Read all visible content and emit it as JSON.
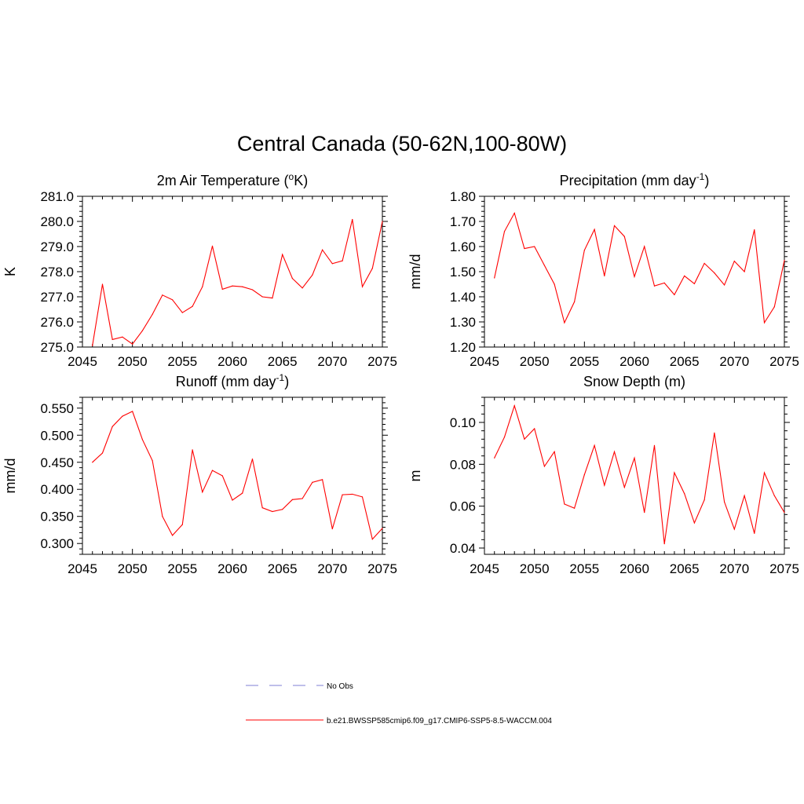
{
  "main_title": "Central Canada (50-62N,100-80W)",
  "colors": {
    "model": "#ff0000",
    "obs": "#9999dd",
    "axis": "#000000"
  },
  "chart_data": [
    {
      "type": "line",
      "id": "temp",
      "title": "2m Air Temperature (",
      "title_sup": "o",
      "title_tail": "K)",
      "ylabel": "K",
      "xlim": [
        2045,
        2075
      ],
      "ylim": [
        275.0,
        281.0
      ],
      "xticks": [
        "2045",
        "2050",
        "2055",
        "2060",
        "2065",
        "2070",
        "2075"
      ],
      "yticks": [
        "275.0",
        "276.0",
        "277.0",
        "278.0",
        "279.0",
        "280.0",
        "281.0"
      ],
      "x": [
        2046,
        2047,
        2048,
        2049,
        2050,
        2051,
        2052,
        2053,
        2054,
        2055,
        2056,
        2057,
        2058,
        2059,
        2060,
        2061,
        2062,
        2063,
        2064,
        2065,
        2066,
        2067,
        2068,
        2069,
        2070,
        2071,
        2072,
        2073,
        2074,
        2075
      ],
      "values": [
        275.05,
        277.5,
        275.3,
        275.4,
        275.12,
        275.65,
        276.3,
        277.07,
        276.88,
        276.37,
        276.62,
        277.4,
        279.02,
        277.3,
        277.43,
        277.4,
        277.28,
        277.0,
        276.95,
        278.68,
        277.73,
        277.35,
        277.87,
        278.87,
        278.32,
        278.43,
        280.08,
        277.4,
        278.13,
        280.0
      ]
    },
    {
      "type": "line",
      "id": "precip",
      "title": "Precipitation (mm day",
      "title_sup": "-1",
      "title_tail": ")",
      "ylabel": "mm/d",
      "xlim": [
        2045,
        2075
      ],
      "ylim": [
        1.2,
        1.8
      ],
      "xticks": [
        "2045",
        "2050",
        "2055",
        "2060",
        "2065",
        "2070",
        "2075"
      ],
      "yticks": [
        "1.20",
        "1.30",
        "1.40",
        "1.50",
        "1.60",
        "1.70",
        "1.80"
      ],
      "x": [
        2046,
        2047,
        2048,
        2049,
        2050,
        2051,
        2052,
        2053,
        2054,
        2055,
        2056,
        2057,
        2058,
        2059,
        2060,
        2061,
        2062,
        2063,
        2064,
        2065,
        2066,
        2067,
        2068,
        2069,
        2070,
        2071,
        2072,
        2073,
        2074,
        2075
      ],
      "values": [
        1.475,
        1.66,
        1.733,
        1.592,
        1.6,
        1.525,
        1.45,
        1.297,
        1.38,
        1.585,
        1.668,
        1.483,
        1.683,
        1.64,
        1.48,
        1.6,
        1.443,
        1.455,
        1.408,
        1.483,
        1.452,
        1.533,
        1.495,
        1.447,
        1.542,
        1.5,
        1.667,
        1.297,
        1.36,
        1.545
      ]
    },
    {
      "type": "line",
      "id": "runoff",
      "title": "Runoff (mm day",
      "title_sup": "-1",
      "title_tail": ")",
      "ylabel": "mm/d",
      "xlim": [
        2045,
        2075
      ],
      "ylim": [
        0.28,
        0.57
      ],
      "xticks": [
        "2045",
        "2050",
        "2055",
        "2060",
        "2065",
        "2070",
        "2075"
      ],
      "yticks": [
        "0.300",
        "0.350",
        "0.400",
        "0.450",
        "0.500",
        "0.550"
      ],
      "x": [
        2046,
        2047,
        2048,
        2049,
        2050,
        2051,
        2052,
        2053,
        2054,
        2055,
        2056,
        2057,
        2058,
        2059,
        2060,
        2061,
        2062,
        2063,
        2064,
        2065,
        2066,
        2067,
        2068,
        2069,
        2070,
        2071,
        2072,
        2073,
        2074,
        2075
      ],
      "values": [
        0.45,
        0.467,
        0.516,
        0.535,
        0.544,
        0.492,
        0.453,
        0.35,
        0.315,
        0.335,
        0.473,
        0.395,
        0.435,
        0.425,
        0.38,
        0.393,
        0.456,
        0.366,
        0.359,
        0.363,
        0.381,
        0.383,
        0.413,
        0.418,
        0.327,
        0.39,
        0.391,
        0.386,
        0.308,
        0.328
      ]
    },
    {
      "type": "line",
      "id": "snow",
      "title": "Snow Depth (m)",
      "title_sup": "",
      "title_tail": "",
      "ylabel": "m",
      "xlim": [
        2045,
        2075
      ],
      "ylim": [
        0.037,
        0.112
      ],
      "xticks": [
        "2045",
        "2050",
        "2055",
        "2060",
        "2065",
        "2070",
        "2075"
      ],
      "yticks": [
        "0.04",
        "0.06",
        "0.08",
        "0.10"
      ],
      "x": [
        2046,
        2047,
        2048,
        2049,
        2050,
        2051,
        2052,
        2053,
        2054,
        2055,
        2056,
        2057,
        2058,
        2059,
        2060,
        2061,
        2062,
        2063,
        2064,
        2065,
        2066,
        2067,
        2068,
        2069,
        2070,
        2071,
        2072,
        2073,
        2074,
        2075
      ],
      "values": [
        0.083,
        0.093,
        0.108,
        0.092,
        0.097,
        0.079,
        0.086,
        0.061,
        0.059,
        0.075,
        0.089,
        0.07,
        0.086,
        0.069,
        0.083,
        0.057,
        0.089,
        0.042,
        0.076,
        0.066,
        0.052,
        0.063,
        0.095,
        0.062,
        0.049,
        0.065,
        0.047,
        0.076,
        0.065,
        0.057
      ]
    }
  ],
  "legend": [
    {
      "label": "No Obs",
      "style": "dashed"
    },
    {
      "label": "b.e21.BWSSP585cmip6.f09_g17.CMIP6-SSP5-8.5-WACCM.004",
      "style": "solid"
    }
  ]
}
